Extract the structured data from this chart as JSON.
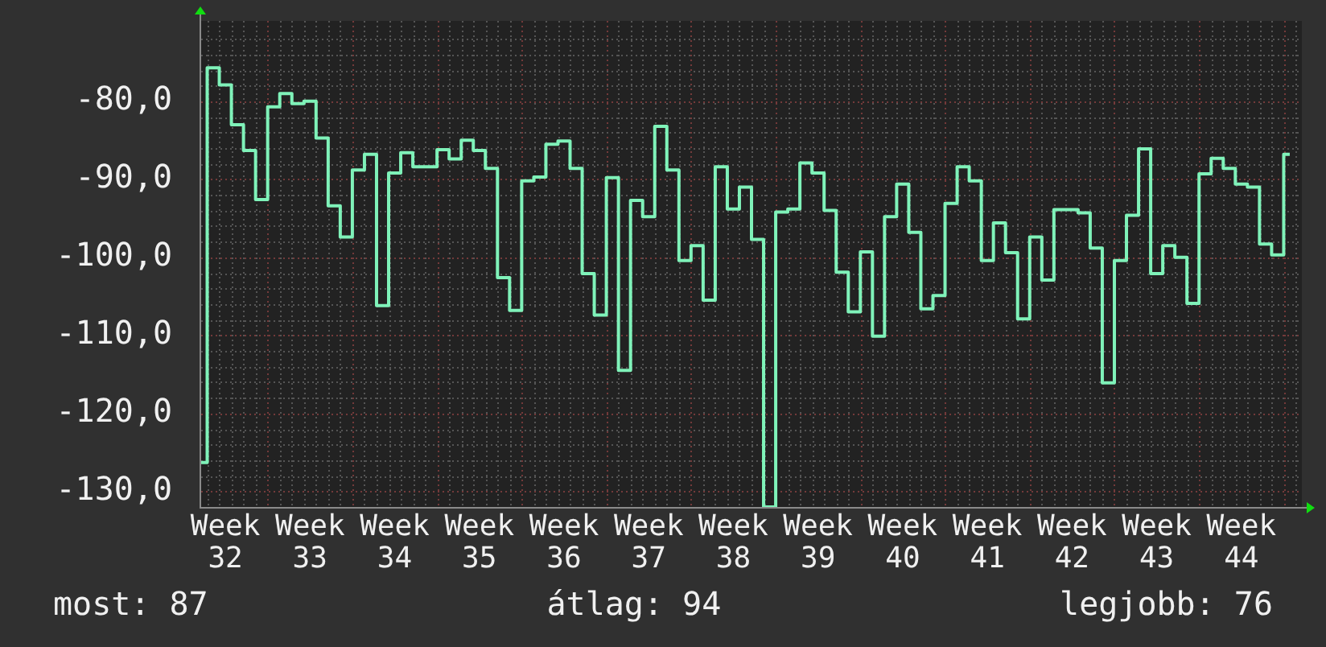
{
  "chart_data": {
    "type": "step",
    "color": "#7ff2b9",
    "categories": [
      null,
      null,
      "Week 32",
      null,
      null,
      null,
      null,
      null,
      null,
      "Week 33",
      null,
      null,
      null,
      null,
      null,
      null,
      "Week 34",
      null,
      null,
      null,
      null,
      null,
      null,
      "Week 35",
      null,
      null,
      null,
      null,
      null,
      null,
      "Week 36",
      null,
      null,
      null,
      null,
      null,
      null,
      "Week 37",
      null,
      null,
      null,
      null,
      null,
      null,
      "Week 38",
      null,
      null,
      null,
      null,
      null,
      null,
      "Week 39",
      null,
      null,
      null,
      null,
      null,
      null,
      "Week 40",
      null,
      null,
      null,
      null,
      null,
      null,
      "Week 41",
      null,
      null,
      null,
      null,
      null,
      null,
      "Week 42",
      null,
      null,
      null,
      null,
      null,
      null,
      "Week 43",
      null,
      null,
      null,
      null,
      null,
      null,
      "Week 44",
      null,
      null,
      null,
      null,
      null
    ],
    "values": [
      -126.3,
      -75.7,
      -77.9,
      -83.0,
      -86.3,
      -92.6,
      -80.7,
      -79.0,
      -80.3,
      -80.0,
      -84.7,
      -93.4,
      -97.4,
      -88.8,
      -86.8,
      -106.2,
      -89.2,
      -86.6,
      -88.4,
      -88.4,
      -86.2,
      -87.4,
      -85.0,
      -86.3,
      -88.6,
      -102.6,
      -106.8,
      -90.2,
      -89.7,
      -85.5,
      -85.1,
      -88.6,
      -102.1,
      -107.4,
      -89.8,
      -114.5,
      -92.7,
      -94.8,
      -83.2,
      -88.8,
      -100.4,
      -98.5,
      -105.5,
      -88.4,
      -93.8,
      -91.0,
      -97.7,
      -132,
      -94.2,
      -93.8,
      -87.9,
      -89.2,
      -94.0,
      -101.9,
      -107.0,
      -99.3,
      -110.1,
      -94.8,
      -90.6,
      -96.8,
      -106.6,
      -104.9,
      -93.1,
      -88.4,
      -90.2,
      -100.4,
      -95.6,
      -99.4,
      -107.9,
      -97.4,
      -102.9,
      -93.9,
      -93.9,
      -94.3,
      -98.8,
      -116.1,
      -100.4,
      -94.6,
      -86.1,
      -102.1,
      -98.5,
      -100.0,
      -105.9,
      -89.3,
      -87.3,
      -88.6,
      -90.6,
      -91.0,
      -98.3,
      -99.7,
      -86.8,
      null
    ],
    "ylim": [
      -132,
      -69.7
    ],
    "yticks": [
      {
        "value": -130,
        "label": "-130,0"
      },
      {
        "value": -128,
        "label": null
      },
      {
        "value": -126,
        "label": null
      },
      {
        "value": -124,
        "label": null
      },
      {
        "value": -122,
        "label": null
      },
      {
        "value": -120,
        "label": "-120,0"
      },
      {
        "value": -118,
        "label": null
      },
      {
        "value": -116,
        "label": null
      },
      {
        "value": -114,
        "label": null
      },
      {
        "value": -112,
        "label": null
      },
      {
        "value": -110,
        "label": "-110,0"
      },
      {
        "value": -108,
        "label": null
      },
      {
        "value": -106,
        "label": null
      },
      {
        "value": -104,
        "label": null
      },
      {
        "value": -102,
        "label": null
      },
      {
        "value": -100,
        "label": "-100,0"
      },
      {
        "value": -98,
        "label": null
      },
      {
        "value": -96,
        "label": null
      },
      {
        "value": -94,
        "label": null
      },
      {
        "value": -92,
        "label": null
      },
      {
        "value": -90,
        "label": "-90,0"
      },
      {
        "value": -88,
        "label": null
      },
      {
        "value": -86,
        "label": null
      },
      {
        "value": -84,
        "label": null
      },
      {
        "value": -82,
        "label": null
      },
      {
        "value": -80,
        "label": "-80,0"
      },
      {
        "value": -78,
        "label": null
      },
      {
        "value": -76,
        "label": null
      },
      {
        "value": -74,
        "label": null
      },
      {
        "value": -72,
        "label": null
      }
    ],
    "grid": true,
    "annotations": [
      "most: 87",
      "átlag: 94",
      "legjobb: 76"
    ]
  }
}
